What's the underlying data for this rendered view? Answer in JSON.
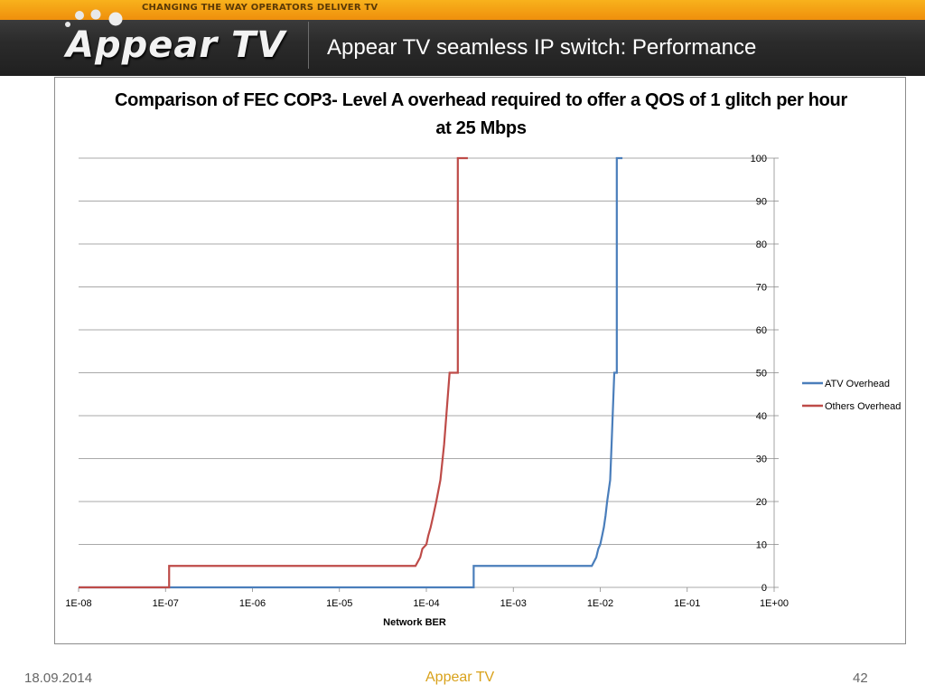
{
  "header": {
    "tagline": "CHANGING THE WAY OPERATORS DELIVER TV",
    "logo_text": "Appear TV",
    "slide_title": "Appear TV seamless IP switch: Performance"
  },
  "footer": {
    "date": "18.09.2014",
    "brand": "Appear TV",
    "page": "42"
  },
  "colors": {
    "atv": "#4a7ebb",
    "others": "#be4b48",
    "grid": "#8c8c8c",
    "brand_orange": "#f5a319"
  },
  "chart_data": {
    "type": "line",
    "title_lines": [
      "Comparison of FEC COP3- Level A overhead required to offer a QOS of 1 glitch per hour",
      "at 25 Mbps"
    ],
    "xlabel": "Network BER",
    "ylabel": "",
    "x_scale": "log",
    "xlim": [
      1e-08,
      1
    ],
    "ylim": [
      0,
      100
    ],
    "x_ticks": [
      1e-08,
      1e-07,
      1e-06,
      1e-05,
      0.0001,
      0.001,
      0.01,
      0.1,
      1
    ],
    "x_tick_labels": [
      "1E-08",
      "1E-07",
      "1E-06",
      "1E-05",
      "1E-04",
      "1E-03",
      "1E-02",
      "1E-01",
      "1E+00"
    ],
    "y_ticks": [
      0,
      10,
      20,
      30,
      40,
      50,
      60,
      70,
      80,
      90,
      100
    ],
    "y_axis_side": "right",
    "grid": true,
    "legend_position": "right",
    "series": [
      {
        "name": "ATV Overhead",
        "color_key": "atv",
        "step": true,
        "points": [
          [
            1e-08,
            0
          ],
          [
            0.00035,
            0
          ],
          [
            0.00035,
            5
          ],
          [
            0.008,
            5
          ],
          [
            0.009,
            7
          ],
          [
            0.0095,
            9
          ],
          [
            0.01,
            10
          ],
          [
            0.0105,
            12
          ],
          [
            0.011,
            14
          ],
          [
            0.0115,
            16.7
          ],
          [
            0.012,
            20
          ],
          [
            0.013,
            25
          ],
          [
            0.0135,
            33.3
          ],
          [
            0.0145,
            50
          ],
          [
            0.0155,
            50
          ],
          [
            0.0155,
            100
          ],
          [
            0.018,
            100
          ]
        ]
      },
      {
        "name": "Others Overhead",
        "color_key": "others",
        "step": true,
        "points": [
          [
            1e-08,
            0
          ],
          [
            1.1e-07,
            0
          ],
          [
            1.1e-07,
            5
          ],
          [
            7.5e-05,
            5
          ],
          [
            8.5e-05,
            7
          ],
          [
            9e-05,
            9
          ],
          [
            0.0001,
            10
          ],
          [
            0.000105,
            12
          ],
          [
            0.000112,
            14
          ],
          [
            0.00012,
            16.7
          ],
          [
            0.00013,
            20
          ],
          [
            0.000145,
            25
          ],
          [
            0.00016,
            33.3
          ],
          [
            0.000185,
            50
          ],
          [
            0.00023,
            50
          ],
          [
            0.00023,
            100
          ],
          [
            0.0003,
            100
          ]
        ]
      }
    ]
  }
}
